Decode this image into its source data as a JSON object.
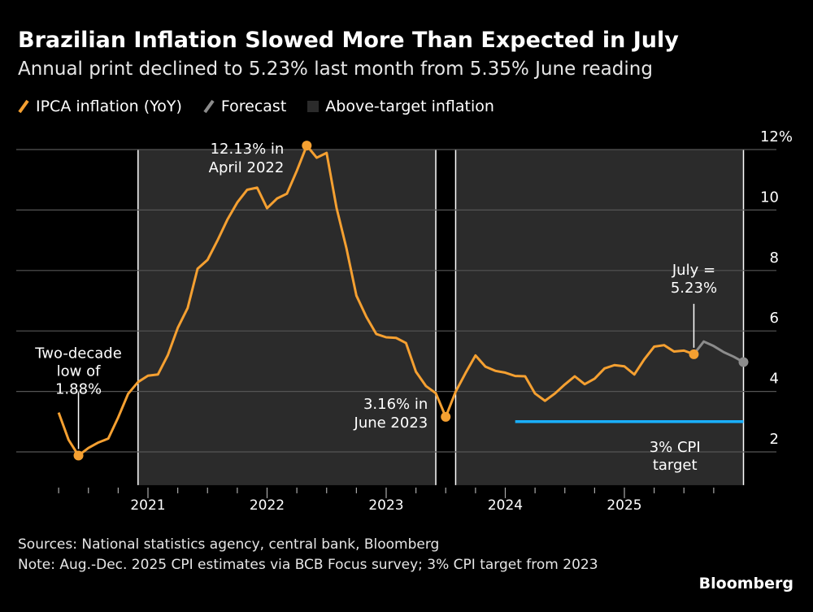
{
  "title": "Brazilian Inflation Slowed More Than Expected in July",
  "subtitle": "Annual print declined to 5.23% last month from 5.35% June reading",
  "legend": [
    {
      "label": "IPCA inflation (YoY)",
      "color": "#f5a031",
      "icon": "slash-line-icon"
    },
    {
      "label": "Forecast",
      "color": "#8c8c8c",
      "icon": "slash-line-icon"
    },
    {
      "label": "Above-target inflation",
      "color": "#2b2b2b",
      "icon": "square-icon"
    }
  ],
  "footer": {
    "sources": "Sources: National statistics agency, central bank, Bloomberg",
    "note": "Note: Aug.-Dec. 2025 CPI estimates via BCB Focus survey; 3% CPI target from 2023",
    "brand": "Bloomberg"
  },
  "chart_data": {
    "type": "line",
    "title": "Brazilian Inflation Slowed More Than Expected in July",
    "ylim": [
      0.9,
      12
    ],
    "yticks": [
      2,
      4,
      6,
      8,
      10,
      12
    ],
    "ytick_labels": [
      "2",
      "4",
      "6",
      "8",
      "10",
      "12%"
    ],
    "xticks": [
      "2021",
      "2022",
      "2023",
      "2024",
      "2025"
    ],
    "x_range": [
      "2020-03",
      "2025-12"
    ],
    "grid": true,
    "legend_position": "top-left",
    "series": [
      {
        "name": "IPCA inflation (YoY)",
        "color": "#f5a031",
        "start": "2020-03",
        "values": [
          3.3,
          2.4,
          1.88,
          2.13,
          2.31,
          2.44,
          3.14,
          3.92,
          4.31,
          4.52,
          4.56,
          5.2,
          6.1,
          6.76,
          8.06,
          8.35,
          8.99,
          9.68,
          10.25,
          10.67,
          10.74,
          10.06,
          10.38,
          10.54,
          11.3,
          12.13,
          11.73,
          11.89,
          10.07,
          8.73,
          7.17,
          6.47,
          5.9,
          5.79,
          5.77,
          5.6,
          4.65,
          4.18,
          3.94,
          3.16,
          3.99,
          4.61,
          5.19,
          4.82,
          4.68,
          4.62,
          4.51,
          4.5,
          3.93,
          3.69,
          3.93,
          4.23,
          4.5,
          4.24,
          4.42,
          4.76,
          4.87,
          4.83,
          4.56,
          5.06,
          5.48,
          5.53,
          5.32,
          5.35,
          5.23
        ]
      },
      {
        "name": "Forecast",
        "color": "#8c8c8c",
        "start": "2025-07",
        "values": [
          5.23,
          5.65,
          5.5,
          5.3,
          5.15,
          4.97
        ]
      }
    ],
    "shaded_regions": [
      {
        "name": "Above-target inflation",
        "from": "2020-11",
        "to": "2023-05",
        "color": "#2b2b2b"
      },
      {
        "name": "Above-target inflation",
        "from": "2023-07",
        "to": "2025-12",
        "color": "#2b2b2b"
      }
    ],
    "target_line": {
      "value": 3,
      "from": "2024-01",
      "to": "2025-12",
      "color": "#1ab0ff",
      "label": "3% CPI target"
    },
    "annotations": [
      {
        "lines": [
          "Two-decade",
          "low of",
          "1.88%"
        ],
        "date": "2020-05",
        "value": 1.88
      },
      {
        "lines": [
          "12.13% in",
          "April 2022"
        ],
        "date": "2022-04",
        "value": 12.13
      },
      {
        "lines": [
          "3.16% in",
          "June 2023"
        ],
        "date": "2023-06",
        "value": 3.16
      },
      {
        "lines": [
          "July =",
          "5.23%"
        ],
        "date": "2025-07",
        "value": 5.23
      },
      {
        "lines": [
          "3% CPI",
          "target"
        ],
        "date": "2025-01",
        "value": 3
      }
    ]
  }
}
